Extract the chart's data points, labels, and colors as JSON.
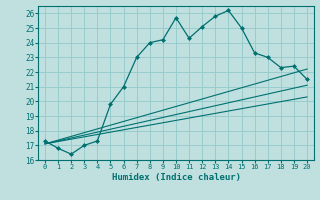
{
  "xlabel": "Humidex (Indice chaleur)",
  "bg_color": "#c0e0e0",
  "grid_color": "#98cccc",
  "line_color": "#007070",
  "xlim": [
    -0.5,
    20.5
  ],
  "ylim": [
    16,
    26.5
  ],
  "xticks": [
    0,
    1,
    2,
    3,
    4,
    5,
    6,
    7,
    8,
    9,
    10,
    11,
    12,
    13,
    14,
    15,
    16,
    17,
    18,
    19,
    20
  ],
  "yticks": [
    16,
    17,
    18,
    19,
    20,
    21,
    22,
    23,
    24,
    25,
    26
  ],
  "main_x": [
    0,
    1,
    2,
    3,
    4,
    5,
    6,
    7,
    8,
    9,
    10,
    11,
    12,
    13,
    14,
    15,
    16,
    17,
    18,
    19,
    20
  ],
  "main_y": [
    17.3,
    16.8,
    16.4,
    17.0,
    17.3,
    19.8,
    21.0,
    23.0,
    24.0,
    24.2,
    25.7,
    24.3,
    25.1,
    25.8,
    26.2,
    25.0,
    23.3,
    23.0,
    22.3,
    22.4,
    21.5
  ],
  "line1_x": [
    0,
    20
  ],
  "line1_y": [
    17.1,
    20.3
  ],
  "line2_x": [
    0,
    20
  ],
  "line2_y": [
    17.1,
    21.1
  ],
  "line3_x": [
    0,
    20
  ],
  "line3_y": [
    17.1,
    22.2
  ]
}
